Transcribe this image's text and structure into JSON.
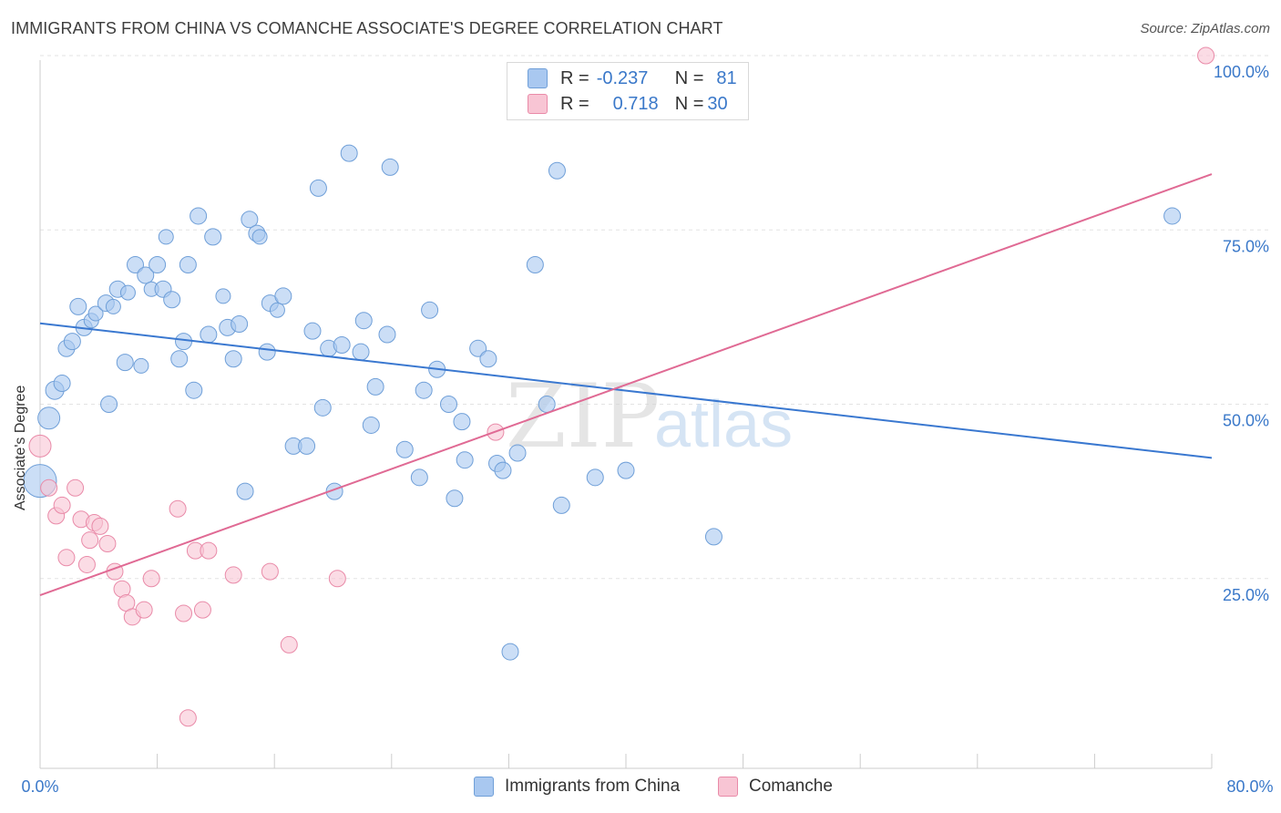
{
  "title": "IMMIGRANTS FROM CHINA VS COMANCHE ASSOCIATE'S DEGREE CORRELATION CHART",
  "source": "Source: ZipAtlas.com",
  "watermark": "ZIPatlas",
  "legend": {
    "rows": [
      {
        "r_label": "R =",
        "r_value": "-0.237",
        "n_label": "N =",
        "n_value": "81",
        "color": "#a9c8f0",
        "border": "#6f9fd8"
      },
      {
        "r_label": "R =",
        "r_value": "0.718",
        "n_label": "N =",
        "n_value": "30",
        "color": "#f8c5d4",
        "border": "#e98aa8"
      }
    ]
  },
  "bottom_legend": [
    {
      "label": "Immigrants from China",
      "color": "#a9c8f0",
      "border": "#6f9fd8"
    },
    {
      "label": "Comanche",
      "color": "#f8c5d4",
      "border": "#e98aa8"
    }
  ],
  "chart_data": {
    "type": "scatter",
    "title": "IMMIGRANTS FROM CHINA VS COMANCHE ASSOCIATE'S DEGREE CORRELATION CHART",
    "xlabel": "",
    "ylabel": "Associate's Degree",
    "xlim": [
      0,
      80
    ],
    "ylim": [
      0,
      100
    ],
    "x_tick_labels": [
      "0.0%",
      "80.0%"
    ],
    "y_tick_labels": [
      "25.0%",
      "50.0%",
      "75.0%",
      "100.0%"
    ],
    "y_ticks": [
      25,
      50,
      75,
      100
    ],
    "grid": true,
    "series": [
      {
        "name": "Immigrants from China",
        "color": "#a9c8f0",
        "stroke": "#6f9fd8",
        "line_color": "#3a78d0",
        "trend": {
          "x": [
            0,
            80
          ],
          "y": [
            61.6,
            42.3
          ]
        },
        "points": [
          [
            0.0,
            39.0,
            18
          ],
          [
            0.6,
            48.0,
            12
          ],
          [
            1.0,
            52.0,
            10
          ],
          [
            1.5,
            53.0,
            9
          ],
          [
            1.8,
            58.0,
            9
          ],
          [
            2.2,
            59.0,
            9
          ],
          [
            2.6,
            64.0,
            9
          ],
          [
            3.0,
            61.0,
            9
          ],
          [
            3.5,
            62.0,
            8
          ],
          [
            3.8,
            63.0,
            8
          ],
          [
            4.5,
            64.5,
            9
          ],
          [
            5.0,
            64.0,
            8
          ],
          [
            4.7,
            50.0,
            9
          ],
          [
            5.3,
            66.5,
            9
          ],
          [
            5.8,
            56.0,
            9
          ],
          [
            6.0,
            66.0,
            8
          ],
          [
            6.5,
            70.0,
            9
          ],
          [
            6.9,
            55.5,
            8
          ],
          [
            7.2,
            68.5,
            9
          ],
          [
            7.6,
            66.5,
            8
          ],
          [
            8.0,
            70.0,
            9
          ],
          [
            8.4,
            66.5,
            9
          ],
          [
            8.6,
            74.0,
            8
          ],
          [
            9.0,
            65.0,
            9
          ],
          [
            9.5,
            56.5,
            9
          ],
          [
            9.8,
            59.0,
            9
          ],
          [
            10.1,
            70.0,
            9
          ],
          [
            10.5,
            52.0,
            9
          ],
          [
            10.8,
            77.0,
            9
          ],
          [
            11.5,
            60.0,
            9
          ],
          [
            11.8,
            74.0,
            9
          ],
          [
            12.5,
            65.5,
            8
          ],
          [
            12.8,
            61.0,
            9
          ],
          [
            13.2,
            56.5,
            9
          ],
          [
            13.6,
            61.5,
            9
          ],
          [
            14.0,
            37.5,
            9
          ],
          [
            14.3,
            76.5,
            9
          ],
          [
            14.8,
            74.5,
            9
          ],
          [
            15.0,
            74.0,
            8
          ],
          [
            15.5,
            57.5,
            9
          ],
          [
            15.7,
            64.5,
            9
          ],
          [
            16.2,
            63.5,
            8
          ],
          [
            16.6,
            65.5,
            9
          ],
          [
            17.3,
            44.0,
            9
          ],
          [
            18.2,
            44.0,
            9
          ],
          [
            18.6,
            60.5,
            9
          ],
          [
            19.0,
            81.0,
            9
          ],
          [
            19.3,
            49.5,
            9
          ],
          [
            19.7,
            58.0,
            9
          ],
          [
            20.1,
            37.5,
            9
          ],
          [
            20.6,
            58.5,
            9
          ],
          [
            21.1,
            86.0,
            9
          ],
          [
            21.9,
            57.5,
            9
          ],
          [
            22.1,
            62.0,
            9
          ],
          [
            22.6,
            47.0,
            9
          ],
          [
            22.9,
            52.5,
            9
          ],
          [
            23.7,
            60.0,
            9
          ],
          [
            23.9,
            84.0,
            9
          ],
          [
            24.9,
            43.5,
            9
          ],
          [
            25.9,
            39.5,
            9
          ],
          [
            26.2,
            52.0,
            9
          ],
          [
            26.6,
            63.5,
            9
          ],
          [
            27.1,
            55.0,
            9
          ],
          [
            27.9,
            50.0,
            9
          ],
          [
            28.3,
            36.5,
            9
          ],
          [
            28.8,
            47.5,
            9
          ],
          [
            29.0,
            42.0,
            9
          ],
          [
            29.9,
            58.0,
            9
          ],
          [
            30.6,
            56.5,
            9
          ],
          [
            31.2,
            41.5,
            9
          ],
          [
            31.6,
            40.5,
            9
          ],
          [
            32.1,
            14.5,
            9
          ],
          [
            32.6,
            43.0,
            9
          ],
          [
            33.8,
            70.0,
            9
          ],
          [
            34.6,
            50.0,
            9
          ],
          [
            35.3,
            83.5,
            9
          ],
          [
            35.6,
            35.5,
            9
          ],
          [
            37.9,
            39.5,
            9
          ],
          [
            40.0,
            40.5,
            9
          ],
          [
            46.0,
            31.0,
            9
          ],
          [
            77.3,
            77.0,
            9
          ]
        ]
      },
      {
        "name": "Comanche",
        "color": "#f8c5d4",
        "stroke": "#e98aa8",
        "line_color": "#e06a94",
        "trend": {
          "x": [
            0,
            80
          ],
          "y": [
            22.6,
            83.0
          ]
        },
        "points": [
          [
            0.0,
            44.0,
            12
          ],
          [
            0.6,
            38.0,
            9
          ],
          [
            1.1,
            34.0,
            9
          ],
          [
            1.5,
            35.5,
            9
          ],
          [
            1.8,
            28.0,
            9
          ],
          [
            2.4,
            38.0,
            9
          ],
          [
            2.8,
            33.5,
            9
          ],
          [
            3.2,
            27.0,
            9
          ],
          [
            3.4,
            30.5,
            9
          ],
          [
            3.7,
            33.0,
            9
          ],
          [
            4.1,
            32.5,
            9
          ],
          [
            4.6,
            30.0,
            9
          ],
          [
            5.1,
            26.0,
            9
          ],
          [
            5.6,
            23.5,
            9
          ],
          [
            5.9,
            21.5,
            9
          ],
          [
            6.3,
            19.5,
            9
          ],
          [
            7.1,
            20.5,
            9
          ],
          [
            7.6,
            25.0,
            9
          ],
          [
            9.4,
            35.0,
            9
          ],
          [
            9.8,
            20.0,
            9
          ],
          [
            10.1,
            5.0,
            9
          ],
          [
            10.6,
            29.0,
            9
          ],
          [
            11.1,
            20.5,
            9
          ],
          [
            11.5,
            29.0,
            9
          ],
          [
            13.2,
            25.5,
            9
          ],
          [
            15.7,
            26.0,
            9
          ],
          [
            17.0,
            15.5,
            9
          ],
          [
            20.3,
            25.0,
            9
          ],
          [
            31.1,
            46.0,
            9
          ],
          [
            79.6,
            100.0,
            9
          ]
        ]
      }
    ]
  }
}
